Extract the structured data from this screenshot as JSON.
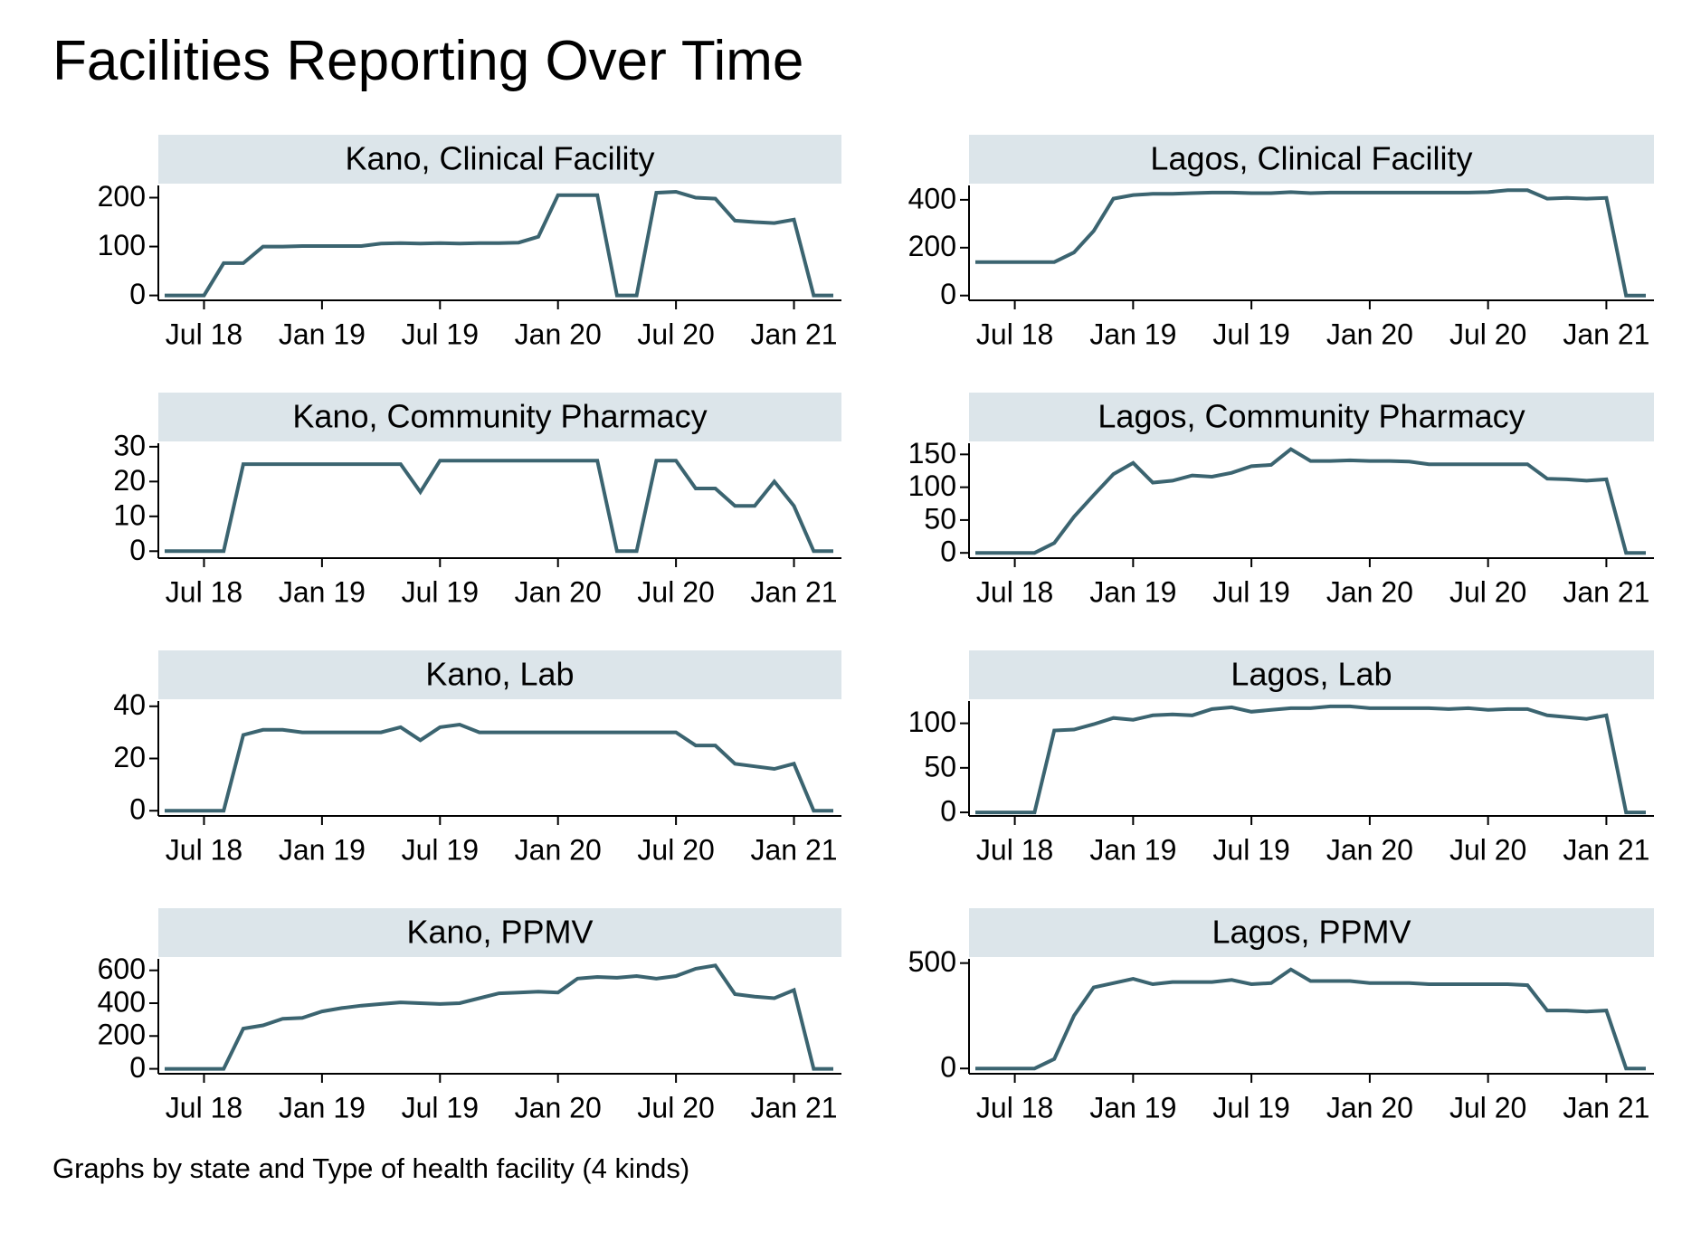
{
  "title": "Facilities Reporting Over Time",
  "note": "Graphs by state and Type of health facility (4 kinds)",
  "chart_data": [
    {
      "type": "line",
      "title": "Kano, Clinical Facility",
      "color": "#3b6470",
      "x": [
        "2018-05",
        "2018-06",
        "2018-07",
        "2018-08",
        "2018-09",
        "2018-10",
        "2018-11",
        "2018-12",
        "2019-01",
        "2019-02",
        "2019-03",
        "2019-04",
        "2019-05",
        "2019-06",
        "2019-07",
        "2019-08",
        "2019-09",
        "2019-10",
        "2019-11",
        "2019-12",
        "2020-01",
        "2020-02",
        "2020-03",
        "2020-04",
        "2020-05",
        "2020-06",
        "2020-07",
        "2020-08",
        "2020-09",
        "2020-10",
        "2020-11",
        "2020-12",
        "2021-01",
        "2021-02",
        "2021-03"
      ],
      "values": [
        0,
        0,
        0,
        66,
        66,
        100,
        100,
        101,
        101,
        101,
        101,
        106,
        107,
        106,
        107,
        106,
        107,
        107,
        108,
        120,
        205,
        205,
        205,
        0,
        0,
        210,
        212,
        200,
        198,
        153,
        150,
        148,
        155,
        0,
        0
      ],
      "ylim": [
        -10,
        225
      ],
      "yticks": [
        0,
        100,
        200
      ],
      "xticks": [
        {
          "value": "2018-07",
          "label": "Jul 18"
        },
        {
          "value": "2019-01",
          "label": "Jan 19"
        },
        {
          "value": "2019-07",
          "label": "Jul 19"
        },
        {
          "value": "2020-01",
          "label": "Jan 20"
        },
        {
          "value": "2020-07",
          "label": "Jul 20"
        },
        {
          "value": "2021-01",
          "label": "Jan 21"
        }
      ]
    },
    {
      "type": "line",
      "title": "Lagos, Clinical Facility",
      "color": "#3b6470",
      "x": [
        "2018-05",
        "2018-06",
        "2018-07",
        "2018-08",
        "2018-09",
        "2018-10",
        "2018-11",
        "2018-12",
        "2019-01",
        "2019-02",
        "2019-03",
        "2019-04",
        "2019-05",
        "2019-06",
        "2019-07",
        "2019-08",
        "2019-09",
        "2019-10",
        "2019-11",
        "2019-12",
        "2020-01",
        "2020-02",
        "2020-03",
        "2020-04",
        "2020-05",
        "2020-06",
        "2020-07",
        "2020-08",
        "2020-09",
        "2020-10",
        "2020-11",
        "2020-12",
        "2021-01",
        "2021-02",
        "2021-03"
      ],
      "values": [
        140,
        140,
        140,
        140,
        140,
        180,
        270,
        405,
        420,
        425,
        425,
        428,
        430,
        430,
        428,
        428,
        432,
        428,
        430,
        430,
        430,
        430,
        430,
        430,
        430,
        430,
        432,
        440,
        440,
        405,
        408,
        405,
        408,
        0,
        0
      ],
      "ylim": [
        -20,
        460
      ],
      "yticks": [
        0,
        200,
        400
      ],
      "xticks": [
        {
          "value": "2018-07",
          "label": "Jul 18"
        },
        {
          "value": "2019-01",
          "label": "Jan 19"
        },
        {
          "value": "2019-07",
          "label": "Jul 19"
        },
        {
          "value": "2020-01",
          "label": "Jan 20"
        },
        {
          "value": "2020-07",
          "label": "Jul 20"
        },
        {
          "value": "2021-01",
          "label": "Jan 21"
        }
      ]
    },
    {
      "type": "line",
      "title": "Kano, Community Pharmacy",
      "color": "#3b6470",
      "x": [
        "2018-05",
        "2018-06",
        "2018-07",
        "2018-08",
        "2018-09",
        "2018-10",
        "2018-11",
        "2018-12",
        "2019-01",
        "2019-02",
        "2019-03",
        "2019-04",
        "2019-05",
        "2019-06",
        "2019-07",
        "2019-08",
        "2019-09",
        "2019-10",
        "2019-11",
        "2019-12",
        "2020-01",
        "2020-02",
        "2020-03",
        "2020-04",
        "2020-05",
        "2020-06",
        "2020-07",
        "2020-08",
        "2020-09",
        "2020-10",
        "2020-11",
        "2020-12",
        "2021-01",
        "2021-02",
        "2021-03"
      ],
      "values": [
        0,
        0,
        0,
        0,
        25,
        25,
        25,
        25,
        25,
        25,
        25,
        25,
        25,
        17,
        26,
        26,
        26,
        26,
        26,
        26,
        26,
        26,
        26,
        0,
        0,
        26,
        26,
        18,
        18,
        13,
        13,
        20,
        13,
        0,
        0
      ],
      "ylim": [
        -2,
        31
      ],
      "yticks": [
        0,
        10,
        20,
        30
      ],
      "xticks": [
        {
          "value": "2018-07",
          "label": "Jul 18"
        },
        {
          "value": "2019-01",
          "label": "Jan 19"
        },
        {
          "value": "2019-07",
          "label": "Jul 19"
        },
        {
          "value": "2020-01",
          "label": "Jan 20"
        },
        {
          "value": "2020-07",
          "label": "Jul 20"
        },
        {
          "value": "2021-01",
          "label": "Jan 21"
        }
      ]
    },
    {
      "type": "line",
      "title": "Lagos, Community Pharmacy",
      "color": "#3b6470",
      "x": [
        "2018-05",
        "2018-06",
        "2018-07",
        "2018-08",
        "2018-09",
        "2018-10",
        "2018-11",
        "2018-12",
        "2019-01",
        "2019-02",
        "2019-03",
        "2019-04",
        "2019-05",
        "2019-06",
        "2019-07",
        "2019-08",
        "2019-09",
        "2019-10",
        "2019-11",
        "2019-12",
        "2020-01",
        "2020-02",
        "2020-03",
        "2020-04",
        "2020-05",
        "2020-06",
        "2020-07",
        "2020-08",
        "2020-09",
        "2020-10",
        "2020-11",
        "2020-12",
        "2021-01",
        "2021-02",
        "2021-03"
      ],
      "values": [
        0,
        0,
        0,
        0,
        15,
        55,
        88,
        120,
        137,
        107,
        110,
        118,
        116,
        122,
        132,
        134,
        158,
        140,
        140,
        141,
        140,
        140,
        139,
        135,
        135,
        135,
        135,
        135,
        135,
        113,
        112,
        110,
        112,
        0,
        0
      ],
      "ylim": [
        -8,
        167
      ],
      "yticks": [
        0,
        50,
        100,
        150
      ],
      "xticks": [
        {
          "value": "2018-07",
          "label": "Jul 18"
        },
        {
          "value": "2019-01",
          "label": "Jan 19"
        },
        {
          "value": "2019-07",
          "label": "Jul 19"
        },
        {
          "value": "2020-01",
          "label": "Jan 20"
        },
        {
          "value": "2020-07",
          "label": "Jul 20"
        },
        {
          "value": "2021-01",
          "label": "Jan 21"
        }
      ]
    },
    {
      "type": "line",
      "title": "Kano, Lab",
      "color": "#3b6470",
      "x": [
        "2018-05",
        "2018-06",
        "2018-07",
        "2018-08",
        "2018-09",
        "2018-10",
        "2018-11",
        "2018-12",
        "2019-01",
        "2019-02",
        "2019-03",
        "2019-04",
        "2019-05",
        "2019-06",
        "2019-07",
        "2019-08",
        "2019-09",
        "2019-10",
        "2019-11",
        "2019-12",
        "2020-01",
        "2020-02",
        "2020-03",
        "2020-04",
        "2020-05",
        "2020-06",
        "2020-07",
        "2020-08",
        "2020-09",
        "2020-10",
        "2020-11",
        "2020-12",
        "2021-01",
        "2021-02",
        "2021-03"
      ],
      "values": [
        0,
        0,
        0,
        0,
        29,
        31,
        31,
        30,
        30,
        30,
        30,
        30,
        32,
        27,
        32,
        33,
        30,
        30,
        30,
        30,
        30,
        30,
        30,
        30,
        30,
        30,
        30,
        25,
        25,
        18,
        17,
        16,
        18,
        0,
        0
      ],
      "ylim": [
        -2,
        42
      ],
      "yticks": [
        0,
        20,
        40
      ],
      "xticks": [
        {
          "value": "2018-07",
          "label": "Jul 18"
        },
        {
          "value": "2019-01",
          "label": "Jan 19"
        },
        {
          "value": "2019-07",
          "label": "Jul 19"
        },
        {
          "value": "2020-01",
          "label": "Jan 20"
        },
        {
          "value": "2020-07",
          "label": "Jul 20"
        },
        {
          "value": "2021-01",
          "label": "Jan 21"
        }
      ]
    },
    {
      "type": "line",
      "title": "Lagos, Lab",
      "color": "#3b6470",
      "x": [
        "2018-05",
        "2018-06",
        "2018-07",
        "2018-08",
        "2018-09",
        "2018-10",
        "2018-11",
        "2018-12",
        "2019-01",
        "2019-02",
        "2019-03",
        "2019-04",
        "2019-05",
        "2019-06",
        "2019-07",
        "2019-08",
        "2019-09",
        "2019-10",
        "2019-11",
        "2019-12",
        "2020-01",
        "2020-02",
        "2020-03",
        "2020-04",
        "2020-05",
        "2020-06",
        "2020-07",
        "2020-08",
        "2020-09",
        "2020-10",
        "2020-11",
        "2020-12",
        "2021-01",
        "2021-02",
        "2021-03"
      ],
      "values": [
        0,
        0,
        0,
        0,
        92,
        93,
        99,
        106,
        104,
        109,
        110,
        109,
        116,
        118,
        113,
        115,
        117,
        117,
        119,
        119,
        117,
        117,
        117,
        117,
        116,
        117,
        115,
        116,
        116,
        109,
        107,
        105,
        109,
        0,
        0
      ],
      "ylim": [
        -4,
        125
      ],
      "yticks": [
        0,
        50,
        100
      ],
      "xticks": [
        {
          "value": "2018-07",
          "label": "Jul 18"
        },
        {
          "value": "2019-01",
          "label": "Jan 19"
        },
        {
          "value": "2019-07",
          "label": "Jul 19"
        },
        {
          "value": "2020-01",
          "label": "Jan 20"
        },
        {
          "value": "2020-07",
          "label": "Jul 20"
        },
        {
          "value": "2021-01",
          "label": "Jan 21"
        }
      ]
    },
    {
      "type": "line",
      "title": "Kano, PPMV",
      "color": "#3b6470",
      "x": [
        "2018-05",
        "2018-06",
        "2018-07",
        "2018-08",
        "2018-09",
        "2018-10",
        "2018-11",
        "2018-12",
        "2019-01",
        "2019-02",
        "2019-03",
        "2019-04",
        "2019-05",
        "2019-06",
        "2019-07",
        "2019-08",
        "2019-09",
        "2019-10",
        "2019-11",
        "2019-12",
        "2020-01",
        "2020-02",
        "2020-03",
        "2020-04",
        "2020-05",
        "2020-06",
        "2020-07",
        "2020-08",
        "2020-09",
        "2020-10",
        "2020-11",
        "2020-12",
        "2021-01",
        "2021-02",
        "2021-03"
      ],
      "values": [
        0,
        0,
        0,
        0,
        245,
        265,
        305,
        310,
        350,
        370,
        385,
        395,
        405,
        400,
        395,
        400,
        430,
        460,
        465,
        470,
        465,
        550,
        560,
        555,
        565,
        550,
        565,
        610,
        630,
        455,
        440,
        430,
        480,
        0,
        0
      ],
      "ylim": [
        -30,
        670
      ],
      "yticks": [
        0,
        200,
        400,
        600
      ],
      "xticks": [
        {
          "value": "2018-07",
          "label": "Jul 18"
        },
        {
          "value": "2019-01",
          "label": "Jan 19"
        },
        {
          "value": "2019-07",
          "label": "Jul 19"
        },
        {
          "value": "2020-01",
          "label": "Jan 20"
        },
        {
          "value": "2020-07",
          "label": "Jul 20"
        },
        {
          "value": "2021-01",
          "label": "Jan 21"
        }
      ]
    },
    {
      "type": "line",
      "title": "Lagos, PPMV",
      "color": "#3b6470",
      "x": [
        "2018-05",
        "2018-06",
        "2018-07",
        "2018-08",
        "2018-09",
        "2018-10",
        "2018-11",
        "2018-12",
        "2019-01",
        "2019-02",
        "2019-03",
        "2019-04",
        "2019-05",
        "2019-06",
        "2019-07",
        "2019-08",
        "2019-09",
        "2019-10",
        "2019-11",
        "2019-12",
        "2020-01",
        "2020-02",
        "2020-03",
        "2020-04",
        "2020-05",
        "2020-06",
        "2020-07",
        "2020-08",
        "2020-09",
        "2020-10",
        "2020-11",
        "2020-12",
        "2021-01",
        "2021-02",
        "2021-03"
      ],
      "values": [
        0,
        0,
        0,
        0,
        45,
        250,
        385,
        405,
        425,
        400,
        410,
        410,
        410,
        420,
        400,
        405,
        470,
        415,
        415,
        415,
        405,
        405,
        405,
        400,
        400,
        400,
        400,
        400,
        395,
        275,
        275,
        270,
        275,
        0,
        0
      ],
      "ylim": [
        -25,
        520
      ],
      "yticks": [
        0,
        500
      ],
      "xticks": [
        {
          "value": "2018-07",
          "label": "Jul 18"
        },
        {
          "value": "2019-01",
          "label": "Jan 19"
        },
        {
          "value": "2019-07",
          "label": "Jul 19"
        },
        {
          "value": "2020-01",
          "label": "Jan 20"
        },
        {
          "value": "2020-07",
          "label": "Jul 20"
        },
        {
          "value": "2021-01",
          "label": "Jan 21"
        }
      ]
    }
  ]
}
